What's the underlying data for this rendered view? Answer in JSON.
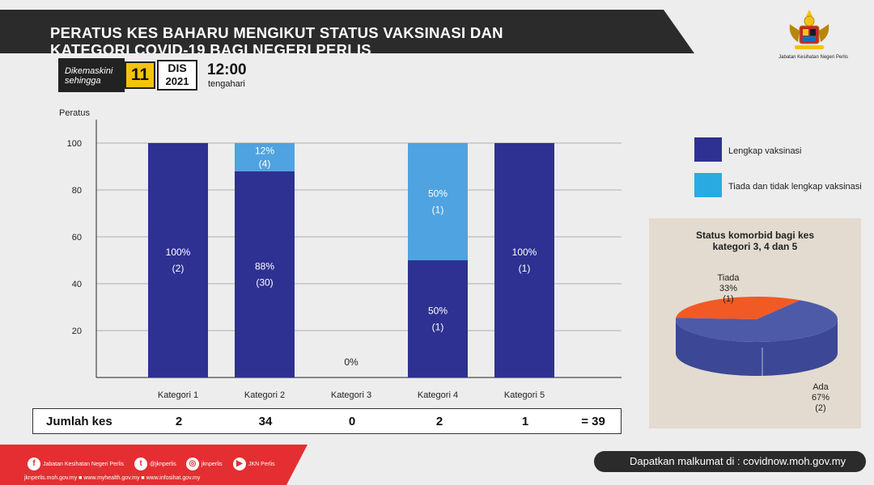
{
  "header": {
    "title_line1": "PERATUS KES BAHARU MENGIKUT STATUS VAKSINASI  DAN",
    "title_line2": "KATEGORI COVID-19 BAGI NEGERI PERLIS",
    "logo_caption": "Jabatan Kesihatan Negeri Perlis"
  },
  "update": {
    "label_line1": "Dikemaskini",
    "label_line2": "sehingga",
    "day": "11",
    "month": "DIS",
    "year": "2021",
    "time": "12:00",
    "time_label": "tengahari"
  },
  "chart_data": {
    "type": "bar",
    "stacked": true,
    "ylabel": "Peratus",
    "ylim": [
      0,
      110
    ],
    "yticks": [
      20,
      40,
      60,
      80,
      100
    ],
    "grid": true,
    "categories": [
      "Kategori 1",
      "Kategori 2",
      "Kategori 3",
      "Kategori 4",
      "Kategori 5"
    ],
    "series": [
      {
        "name": "Lengkap vaksinasi",
        "color": "#2e3192",
        "values": [
          100,
          88,
          0,
          50,
          100
        ],
        "labels_pct": [
          "100%",
          "88%",
          "",
          "50%",
          "100%"
        ],
        "labels_count": [
          "(2)",
          "(30)",
          "",
          "(1)",
          "(1)"
        ]
      },
      {
        "name": "Tiada dan tidak lengkap vaksinasi",
        "color": "#4fa3e0",
        "values": [
          0,
          12,
          0,
          50,
          0
        ],
        "labels_pct": [
          "",
          "12%",
          "",
          "50%",
          ""
        ],
        "labels_count": [
          "",
          "(4)",
          "",
          "(1)",
          ""
        ]
      }
    ],
    "zero_label": "0%",
    "legend_position": "right"
  },
  "legend": [
    {
      "label": "Lengkap vaksinasi",
      "color": "#2e3192"
    },
    {
      "label": "Tiada dan tidak lengkap vaksinasi",
      "color": "#29abe2"
    }
  ],
  "pie": {
    "title": "Status komorbid bagi kes kategori 3, 4 dan 5",
    "slices": [
      {
        "name": "Tiada",
        "pct": "33%",
        "count": "(1)",
        "value": 33,
        "color": "#f15a24"
      },
      {
        "name": "Ada",
        "pct": "67%",
        "count": "(2)",
        "value": 67,
        "color": "#4d5aa8"
      }
    ]
  },
  "jumlah": {
    "title": "Jumlah kes",
    "values": [
      "2",
      "34",
      "0",
      "2",
      "1"
    ],
    "total": "= 39"
  },
  "footer": {
    "social": [
      {
        "icon": "facebook-icon",
        "glyph": "f",
        "label": "Jabatan Kesihatan Negeri Perlis"
      },
      {
        "icon": "twitter-icon",
        "glyph": "t",
        "label": "@jknperlis"
      },
      {
        "icon": "instagram-icon",
        "glyph": "◎",
        "label": "jknperlis"
      },
      {
        "icon": "youtube-icon",
        "glyph": "▶",
        "label": "JKN Perlis"
      }
    ],
    "urls": "jknperlis.moh.gov.my ■ www.myhealth.gov.my ■ www.infosihat.gov.my",
    "info": "Dapatkan malkumat di : covidnow.moh.gov.my"
  }
}
